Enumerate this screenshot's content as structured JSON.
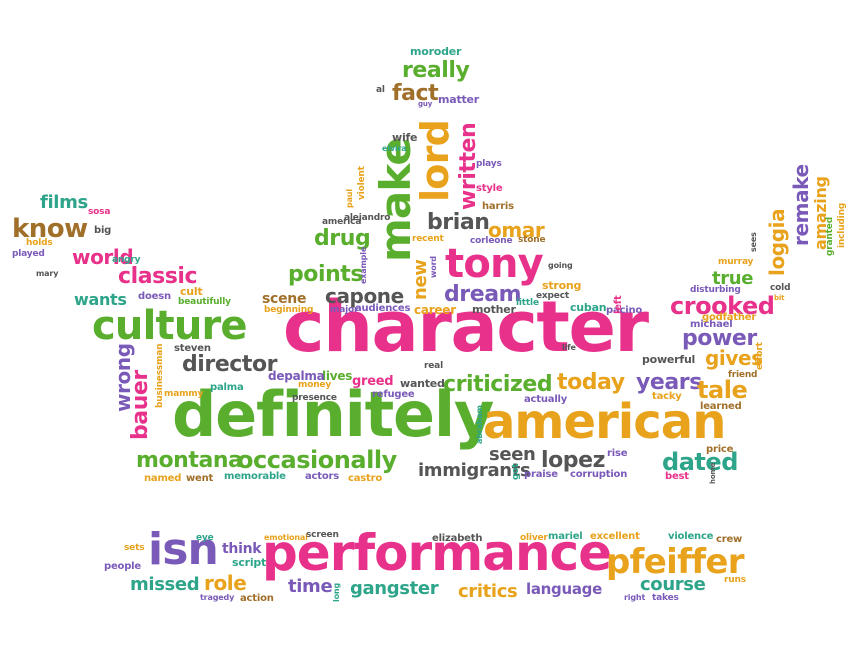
{
  "palette": {
    "magenta": "#e8318a",
    "green": "#5aae2e",
    "orange": "#e8a21c",
    "purple": "#7a5ab8",
    "teal": "#2ea58a",
    "brown": "#a0702a",
    "gray": "#555555"
  },
  "words": [
    {
      "text": "character",
      "color": "magenta"
    },
    {
      "text": "definitely",
      "color": "green"
    },
    {
      "text": "performance",
      "color": "magenta"
    },
    {
      "text": "american",
      "color": "orange"
    },
    {
      "text": "culture",
      "color": "green"
    },
    {
      "text": "tony",
      "color": "magenta"
    },
    {
      "text": "make",
      "color": "green"
    },
    {
      "text": "lord",
      "color": "orange"
    },
    {
      "text": "isn",
      "color": "purple"
    },
    {
      "text": "pfeiffer",
      "color": "orange"
    },
    {
      "text": "occasionally",
      "color": "green"
    },
    {
      "text": "criticized",
      "color": "green"
    },
    {
      "text": "today",
      "color": "orange"
    },
    {
      "text": "crooked",
      "color": "magenta"
    },
    {
      "text": "montana",
      "color": "green"
    },
    {
      "text": "director",
      "color": "gray"
    },
    {
      "text": "dream",
      "color": "purple"
    },
    {
      "text": "classic",
      "color": "magenta"
    },
    {
      "text": "world",
      "color": "magenta"
    },
    {
      "text": "know",
      "color": "brown"
    },
    {
      "text": "brian",
      "color": "gray"
    },
    {
      "text": "omar",
      "color": "orange"
    },
    {
      "text": "drug",
      "color": "green"
    },
    {
      "text": "points",
      "color": "green"
    },
    {
      "text": "capone",
      "color": "gray"
    },
    {
      "text": "really",
      "color": "green"
    },
    {
      "text": "fact",
      "color": "brown"
    },
    {
      "text": "written",
      "color": "magenta"
    },
    {
      "text": "new",
      "color": "orange"
    },
    {
      "text": "power",
      "color": "purple"
    },
    {
      "text": "gives",
      "color": "orange"
    },
    {
      "text": "years",
      "color": "purple"
    },
    {
      "text": "tale",
      "color": "orange"
    },
    {
      "text": "dated",
      "color": "teal"
    },
    {
      "text": "lopez",
      "color": "gray"
    },
    {
      "text": "seen",
      "color": "gray"
    },
    {
      "text": "immigrants",
      "color": "gray"
    },
    {
      "text": "bauer",
      "color": "magenta"
    },
    {
      "text": "wrong",
      "color": "purple"
    },
    {
      "text": "true",
      "color": "green"
    },
    {
      "text": "loggia",
      "color": "orange"
    },
    {
      "text": "remake",
      "color": "purple"
    },
    {
      "text": "amazing",
      "color": "orange"
    },
    {
      "text": "films",
      "color": "teal"
    },
    {
      "text": "wants",
      "color": "teal"
    },
    {
      "text": "scene",
      "color": "brown"
    },
    {
      "text": "critics",
      "color": "orange"
    },
    {
      "text": "gangster",
      "color": "teal"
    },
    {
      "text": "course",
      "color": "teal"
    },
    {
      "text": "missed",
      "color": "teal"
    },
    {
      "text": "role",
      "color": "orange"
    },
    {
      "text": "time",
      "color": "purple"
    },
    {
      "text": "language",
      "color": "purple"
    },
    {
      "text": "think",
      "color": "purple"
    },
    {
      "text": "script",
      "color": "teal"
    },
    {
      "text": "greed",
      "color": "magenta"
    },
    {
      "text": "lives",
      "color": "green"
    },
    {
      "text": "depalma",
      "color": "purple"
    },
    {
      "text": "wanted",
      "color": "gray"
    },
    {
      "text": "career",
      "color": "orange"
    },
    {
      "text": "mother",
      "color": "gray"
    },
    {
      "text": "cuban",
      "color": "teal"
    },
    {
      "text": "pacino",
      "color": "purple"
    },
    {
      "text": "michael",
      "color": "purple"
    },
    {
      "text": "godfather",
      "color": "orange"
    },
    {
      "text": "powerful",
      "color": "gray"
    },
    {
      "text": "tacky",
      "color": "orange"
    },
    {
      "text": "learned",
      "color": "brown"
    },
    {
      "text": "price",
      "color": "brown"
    },
    {
      "text": "best",
      "color": "magenta"
    },
    {
      "text": "corruption",
      "color": "purple"
    },
    {
      "text": "praise",
      "color": "purple"
    },
    {
      "text": "rise",
      "color": "purple"
    },
    {
      "text": "actually",
      "color": "purple"
    },
    {
      "text": "refugee",
      "color": "purple"
    },
    {
      "text": "money",
      "color": "orange"
    },
    {
      "text": "palma",
      "color": "teal"
    },
    {
      "text": "steven",
      "color": "gray"
    },
    {
      "text": "businessman",
      "color": "orange"
    },
    {
      "text": "mammy",
      "color": "orange"
    },
    {
      "text": "memorable",
      "color": "teal"
    },
    {
      "text": "named",
      "color": "orange"
    },
    {
      "text": "went",
      "color": "brown"
    },
    {
      "text": "actors",
      "color": "purple"
    },
    {
      "text": "castro",
      "color": "orange"
    },
    {
      "text": "strong",
      "color": "orange"
    },
    {
      "text": "expect",
      "color": "gray"
    },
    {
      "text": "little",
      "color": "teal"
    },
    {
      "text": "audiences",
      "color": "purple"
    },
    {
      "text": "major",
      "color": "purple"
    },
    {
      "text": "beginning",
      "color": "orange"
    },
    {
      "text": "presence",
      "color": "gray"
    },
    {
      "text": "real",
      "color": "gray"
    },
    {
      "text": "cult",
      "color": "orange"
    },
    {
      "text": "beautifully",
      "color": "green"
    },
    {
      "text": "doesn",
      "color": "purple"
    },
    {
      "text": "angry",
      "color": "teal"
    },
    {
      "text": "mary",
      "color": "gray"
    },
    {
      "text": "played",
      "color": "purple"
    },
    {
      "text": "holds",
      "color": "orange"
    },
    {
      "text": "big",
      "color": "gray"
    },
    {
      "text": "sosa",
      "color": "magenta"
    },
    {
      "text": "moroder",
      "color": "teal"
    },
    {
      "text": "al",
      "color": "gray"
    },
    {
      "text": "matter",
      "color": "purple"
    },
    {
      "text": "guy",
      "color": "purple"
    },
    {
      "text": "wife",
      "color": "gray"
    },
    {
      "text": "elvira",
      "color": "teal"
    },
    {
      "text": "plays",
      "color": "purple"
    },
    {
      "text": "style",
      "color": "magenta"
    },
    {
      "text": "harris",
      "color": "brown"
    },
    {
      "text": "paul",
      "color": "orange"
    },
    {
      "text": "violent",
      "color": "orange"
    },
    {
      "text": "alejandro",
      "color": "gray"
    },
    {
      "text": "america",
      "color": "gray"
    },
    {
      "text": "recent",
      "color": "orange"
    },
    {
      "text": "corleone",
      "color": "purple"
    },
    {
      "text": "stone",
      "color": "brown"
    },
    {
      "text": "example",
      "color": "purple"
    },
    {
      "text": "word",
      "color": "purple"
    },
    {
      "text": "going",
      "color": "gray"
    },
    {
      "text": "left",
      "color": "magenta"
    },
    {
      "text": "disturbing",
      "color": "purple"
    },
    {
      "text": "murray",
      "color": "orange"
    },
    {
      "text": "sees",
      "color": "gray"
    },
    {
      "text": "cold",
      "color": "gray"
    },
    {
      "text": "bit",
      "color": "orange"
    },
    {
      "text": "friend",
      "color": "brown"
    },
    {
      "text": "effort",
      "color": "orange"
    },
    {
      "text": "granted",
      "color": "green"
    },
    {
      "text": "including",
      "color": "orange"
    },
    {
      "text": "home",
      "color": "gray"
    },
    {
      "text": "abraham",
      "color": "teal"
    },
    {
      "text": "got",
      "color": "teal"
    },
    {
      "text": "life",
      "color": "gray"
    },
    {
      "text": "eye",
      "color": "teal"
    },
    {
      "text": "emotional",
      "color": "orange"
    },
    {
      "text": "screen",
      "color": "gray"
    },
    {
      "text": "elizabeth",
      "color": "gray"
    },
    {
      "text": "oliver",
      "color": "orange"
    },
    {
      "text": "mariel",
      "color": "teal"
    },
    {
      "text": "excellent",
      "color": "orange"
    },
    {
      "text": "violence",
      "color": "teal"
    },
    {
      "text": "crew",
      "color": "brown"
    },
    {
      "text": "sets",
      "color": "orange"
    },
    {
      "text": "people",
      "color": "purple"
    },
    {
      "text": "tragedy",
      "color": "purple"
    },
    {
      "text": "action",
      "color": "brown"
    },
    {
      "text": "long",
      "color": "teal"
    },
    {
      "text": "right",
      "color": "purple"
    },
    {
      "text": "takes",
      "color": "purple"
    },
    {
      "text": "runs",
      "color": "orange"
    }
  ]
}
